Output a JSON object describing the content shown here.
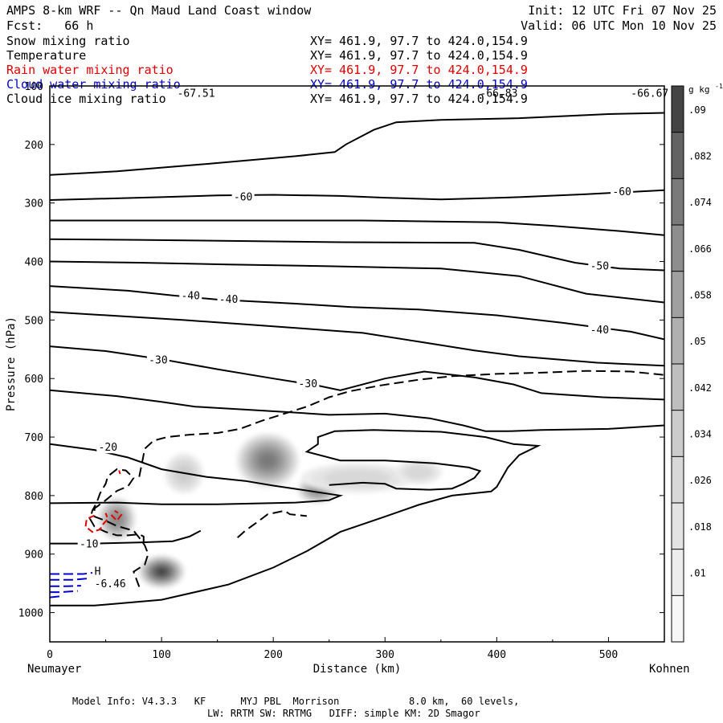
{
  "header": {
    "title": "AMPS 8-km WRF -- Qn Maud Land Coast window",
    "init": "Init: 12 UTC Fri 07 Nov 25",
    "forecast": "Fcst:   66 h",
    "valid": "Valid: 06 UTC Mon 10 Nov 25"
  },
  "fields": [
    {
      "name": "Snow mixing ratio",
      "xy": "XY= 461.9, 97.7 to 424.0,154.9",
      "color": "#000000"
    },
    {
      "name": "Temperature",
      "xy": "XY= 461.9, 97.7 to 424.0,154.9",
      "color": "#000000"
    },
    {
      "name": "Rain water mixing ratio",
      "xy": "XY= 461.9, 97.7 to 424.0,154.9",
      "color": "#e00000"
    },
    {
      "name": "Cloud water mixing ratio",
      "xy": "XY= 461.9, 97.7 to 424.0,154.9",
      "color": "#0000d0"
    },
    {
      "name": "Cloud ice mixing ratio",
      "xy": "XY= 461.9, 97.7 to 424.0,154.9",
      "color": "#000000"
    }
  ],
  "footer": {
    "model_info": "Model Info: V4.3.3   KF      MYJ PBL  Morrison            8.0 km,  60 levels,",
    "physics": "LW: RRTM SW: RRTMG   DIFF: simple KM: 2D Smagor"
  },
  "chart_data": {
    "type": "contour",
    "xlabel": "Distance (km)",
    "ylabel": "Pressure (hPa)",
    "x_endpoints": {
      "left": "Neumayer",
      "right": "Kohnen"
    },
    "xlim": [
      0,
      550
    ],
    "ylim": [
      1050,
      100
    ],
    "xticks": [
      0,
      100,
      200,
      300,
      400,
      500
    ],
    "yticks": [
      100,
      200,
      300,
      400,
      500,
      600,
      700,
      800,
      900,
      1000
    ],
    "colorbar": {
      "unit": "g kg",
      "unit_exp": "-1",
      "levels": [
        ".01",
        ".018",
        ".026",
        ".034",
        ".042",
        ".05",
        ".058",
        ".066",
        ".074",
        ".082",
        ".09"
      ],
      "colors": [
        "#f7f7f7",
        "#ededed",
        "#e3e3e3",
        "#d8d8d8",
        "#cccccc",
        "#bebebe",
        "#b0b0b0",
        "#a0a0a0",
        "#8e8e8e",
        "#7a7a7a",
        "#636363",
        "#444444"
      ]
    },
    "temperature_labels": [
      {
        "text": "-60",
        "x": 173,
        "p": 290
      },
      {
        "text": "-60",
        "x": 512,
        "p": 281
      },
      {
        "text": "-50",
        "x": 492,
        "p": 408
      },
      {
        "text": "-40",
        "x": 126,
        "p": 459
      },
      {
        "text": "-40",
        "x": 160,
        "p": 465
      },
      {
        "text": "-40",
        "x": 492,
        "p": 517
      },
      {
        "text": "-30",
        "x": 97,
        "p": 569
      },
      {
        "text": "-30",
        "x": 231,
        "p": 609
      },
      {
        "text": "-20",
        "x": 52,
        "p": 718
      },
      {
        "text": "-10",
        "x": 35,
        "p": 883
      }
    ],
    "extrema": [
      {
        "text": "-67.51",
        "x": 114,
        "p": 113,
        "color": "#000000"
      },
      {
        "text": "-66.83",
        "x": 385,
        "p": 113,
        "color": "#000000"
      },
      {
        "text": "-66.67",
        "x": 520,
        "p": 113,
        "color": "#000000"
      },
      {
        "text": "H",
        "x": 40,
        "p": 930,
        "color": "#000000"
      },
      {
        "text": "-6.46",
        "x": 40,
        "p": 951,
        "color": "#000000"
      }
    ],
    "temperature_contours": [
      {
        "level": -65,
        "points": [
          [
            0,
            252
          ],
          [
            60,
            246
          ],
          [
            130,
            235
          ],
          [
            220,
            220
          ],
          [
            255,
            213
          ],
          [
            265,
            200
          ],
          [
            290,
            175
          ],
          [
            310,
            162
          ],
          [
            350,
            158
          ],
          [
            420,
            155
          ],
          [
            500,
            148
          ],
          [
            550,
            146
          ]
        ]
      },
      {
        "level": -60,
        "points": [
          [
            0,
            295
          ],
          [
            100,
            290
          ],
          [
            150,
            287
          ],
          [
            200,
            286
          ],
          [
            260,
            288
          ],
          [
            300,
            291
          ],
          [
            350,
            294
          ],
          [
            420,
            290
          ],
          [
            480,
            285
          ],
          [
            550,
            278
          ]
        ]
      },
      {
        "level": -55,
        "points": [
          [
            0,
            330
          ],
          [
            100,
            330
          ],
          [
            200,
            330
          ],
          [
            280,
            330
          ],
          [
            360,
            332
          ],
          [
            400,
            333
          ],
          [
            450,
            339
          ],
          [
            510,
            348
          ],
          [
            550,
            355
          ]
        ]
      },
      {
        "level": -50,
        "points": [
          [
            0,
            362
          ],
          [
            80,
            363
          ],
          [
            170,
            365
          ],
          [
            260,
            367
          ],
          [
            380,
            368
          ],
          [
            420,
            380
          ],
          [
            470,
            402
          ],
          [
            510,
            412
          ],
          [
            550,
            415
          ]
        ]
      },
      {
        "level": -45,
        "points": [
          [
            0,
            400
          ],
          [
            80,
            402
          ],
          [
            160,
            405
          ],
          [
            250,
            408
          ],
          [
            350,
            412
          ],
          [
            420,
            425
          ],
          [
            480,
            455
          ],
          [
            550,
            470
          ]
        ]
      },
      {
        "level": -40,
        "points": [
          [
            0,
            442
          ],
          [
            70,
            450
          ],
          [
            110,
            458
          ],
          [
            150,
            465
          ],
          [
            220,
            472
          ],
          [
            270,
            478
          ],
          [
            330,
            482
          ],
          [
            400,
            492
          ],
          [
            460,
            505
          ],
          [
            520,
            520
          ],
          [
            550,
            533
          ]
        ]
      },
      {
        "level": -35,
        "points": [
          [
            0,
            486
          ],
          [
            60,
            493
          ],
          [
            120,
            500
          ],
          [
            180,
            508
          ],
          [
            230,
            515
          ],
          [
            280,
            522
          ],
          [
            330,
            537
          ],
          [
            380,
            552
          ],
          [
            420,
            562
          ],
          [
            490,
            573
          ],
          [
            550,
            578
          ]
        ]
      },
      {
        "level": -30,
        "points": [
          [
            0,
            545
          ],
          [
            50,
            553
          ],
          [
            100,
            567
          ],
          [
            150,
            584
          ],
          [
            200,
            600
          ],
          [
            240,
            612
          ],
          [
            260,
            620
          ],
          [
            300,
            600
          ],
          [
            335,
            588
          ],
          [
            380,
            598
          ],
          [
            415,
            610
          ],
          [
            440,
            625
          ],
          [
            495,
            632
          ],
          [
            550,
            636
          ]
        ]
      },
      {
        "level": -25,
        "points": [
          [
            0,
            620
          ],
          [
            60,
            630
          ],
          [
            100,
            640
          ],
          [
            130,
            648
          ],
          [
            210,
            657
          ],
          [
            250,
            662
          ],
          [
            300,
            660
          ],
          [
            340,
            668
          ],
          [
            370,
            680
          ],
          [
            390,
            690
          ],
          [
            410,
            690
          ],
          [
            440,
            688
          ],
          [
            500,
            686
          ],
          [
            550,
            680
          ]
        ]
      },
      {
        "level": -20,
        "points": [
          [
            0,
            712
          ],
          [
            40,
            722
          ],
          [
            70,
            735
          ],
          [
            100,
            755
          ],
          [
            140,
            768
          ],
          [
            175,
            775
          ],
          [
            200,
            783
          ],
          [
            225,
            790
          ],
          [
            260,
            800
          ],
          [
            250,
            808
          ],
          [
            220,
            812
          ],
          [
            150,
            815
          ],
          [
            100,
            815
          ],
          [
            60,
            812
          ],
          [
            0,
            813
          ]
        ]
      },
      {
        "level": -10,
        "points": [
          [
            0,
            882
          ],
          [
            40,
            882
          ],
          [
            80,
            880
          ],
          [
            110,
            878
          ],
          [
            125,
            870
          ],
          [
            135,
            860
          ]
        ]
      },
      {
        "level": -5,
        "points": [
          [
            0,
            988
          ],
          [
            40,
            988
          ],
          [
            100,
            978
          ],
          [
            160,
            952
          ],
          [
            200,
            923
          ],
          [
            230,
            895
          ],
          [
            260,
            862
          ],
          [
            300,
            836
          ],
          [
            330,
            816
          ],
          [
            360,
            800
          ],
          [
            395,
            793
          ],
          [
            400,
            785
          ],
          [
            410,
            752
          ],
          [
            420,
            731
          ],
          [
            437,
            715
          ],
          [
            415,
            712
          ],
          [
            390,
            700
          ],
          [
            350,
            691
          ],
          [
            290,
            688
          ],
          [
            255,
            690
          ],
          [
            240,
            700
          ],
          [
            240,
            712
          ],
          [
            230,
            725
          ],
          [
            260,
            740
          ],
          [
            300,
            740
          ],
          [
            345,
            745
          ],
          [
            375,
            752
          ],
          [
            385,
            758
          ],
          [
            380,
            770
          ],
          [
            370,
            780
          ],
          [
            360,
            788
          ],
          [
            340,
            790
          ],
          [
            310,
            788
          ],
          [
            300,
            780
          ],
          [
            280,
            778
          ],
          [
            250,
            782
          ]
        ]
      }
    ],
    "snow_dashed": [
      {
        "points": [
          [
            80,
            956
          ],
          [
            75,
            930
          ],
          [
            85,
            918
          ],
          [
            88,
            900
          ],
          [
            85,
            885
          ],
          [
            80,
            872
          ],
          [
            75,
            860
          ],
          [
            60,
            852
          ],
          [
            50,
            843
          ],
          [
            40,
            836
          ],
          [
            40,
            822
          ],
          [
            50,
            808
          ],
          [
            60,
            792
          ],
          [
            70,
            784
          ],
          [
            75,
            770
          ],
          [
            68,
            757
          ],
          [
            60,
            755
          ],
          [
            52,
            767
          ],
          [
            50,
            780
          ],
          [
            45,
            796
          ],
          [
            42,
            812
          ],
          [
            38,
            826
          ],
          [
            36,
            840
          ],
          [
            40,
            853
          ],
          [
            50,
            862
          ],
          [
            60,
            868
          ],
          [
            70,
            868
          ],
          [
            80,
            866
          ],
          [
            84,
            870
          ],
          [
            84,
            878
          ],
          [
            86,
            890
          ]
        ]
      },
      {
        "points": [
          [
            80,
            768
          ],
          [
            83,
            740
          ],
          [
            85,
            720
          ],
          [
            93,
            706
          ],
          [
            105,
            700
          ],
          [
            125,
            696
          ],
          [
            150,
            693
          ],
          [
            170,
            686
          ],
          [
            190,
            672
          ],
          [
            210,
            660
          ],
          [
            230,
            648
          ],
          [
            250,
            632
          ],
          [
            268,
            622
          ],
          [
            295,
            612
          ],
          [
            330,
            602
          ],
          [
            360,
            596
          ],
          [
            400,
            592
          ],
          [
            440,
            590
          ],
          [
            480,
            587
          ],
          [
            520,
            588
          ],
          [
            550,
            594
          ]
        ]
      },
      {
        "points": [
          [
            168,
            872
          ],
          [
            175,
            860
          ],
          [
            188,
            842
          ],
          [
            195,
            832
          ],
          [
            210,
            826
          ],
          [
            215,
            832
          ],
          [
            230,
            835
          ]
        ]
      }
    ],
    "rain_dashed": [
      {
        "points": [
          [
            40,
            834
          ],
          [
            33,
            840
          ],
          [
            32,
            853
          ],
          [
            38,
            862
          ],
          [
            45,
            858
          ],
          [
            48,
            848
          ],
          [
            52,
            840
          ],
          [
            50,
            830
          ]
        ]
      },
      {
        "points": [
          [
            55,
            833
          ],
          [
            60,
            843
          ],
          [
            64,
            833
          ],
          [
            58,
            826
          ]
        ]
      },
      {
        "points": [
          [
            62,
            757
          ],
          [
            63,
            763
          ]
        ]
      }
    ],
    "cloud_water_dashed": [
      {
        "points": [
          [
            0,
            934
          ],
          [
            30,
            934
          ],
          [
            38,
            932
          ]
        ]
      },
      {
        "points": [
          [
            0,
            944
          ],
          [
            20,
            944
          ],
          [
            33,
            942
          ]
        ]
      },
      {
        "points": [
          [
            0,
            955
          ],
          [
            15,
            955
          ],
          [
            28,
            954
          ]
        ]
      },
      {
        "points": [
          [
            0,
            965
          ],
          [
            10,
            965
          ],
          [
            25,
            963
          ]
        ]
      },
      {
        "points": [
          [
            0,
            974
          ],
          [
            10,
            972
          ]
        ]
      }
    ],
    "shaded_blobs": [
      {
        "x": 60,
        "p": 840,
        "rx": 18,
        "rp": 40,
        "peak": 0.07
      },
      {
        "x": 120,
        "p": 762,
        "rx": 20,
        "rp": 40,
        "peak": 0.035
      },
      {
        "x": 195,
        "p": 740,
        "rx": 30,
        "rp": 50,
        "peak": 0.075
      },
      {
        "x": 240,
        "p": 790,
        "rx": 20,
        "rp": 25,
        "peak": 0.07
      },
      {
        "x": 275,
        "p": 770,
        "rx": 60,
        "rp": 30,
        "peak": 0.03
      },
      {
        "x": 330,
        "p": 760,
        "rx": 25,
        "rp": 25,
        "peak": 0.03
      },
      {
        "x": 100,
        "p": 930,
        "rx": 22,
        "rp": 30,
        "peak": 0.09
      }
    ]
  }
}
